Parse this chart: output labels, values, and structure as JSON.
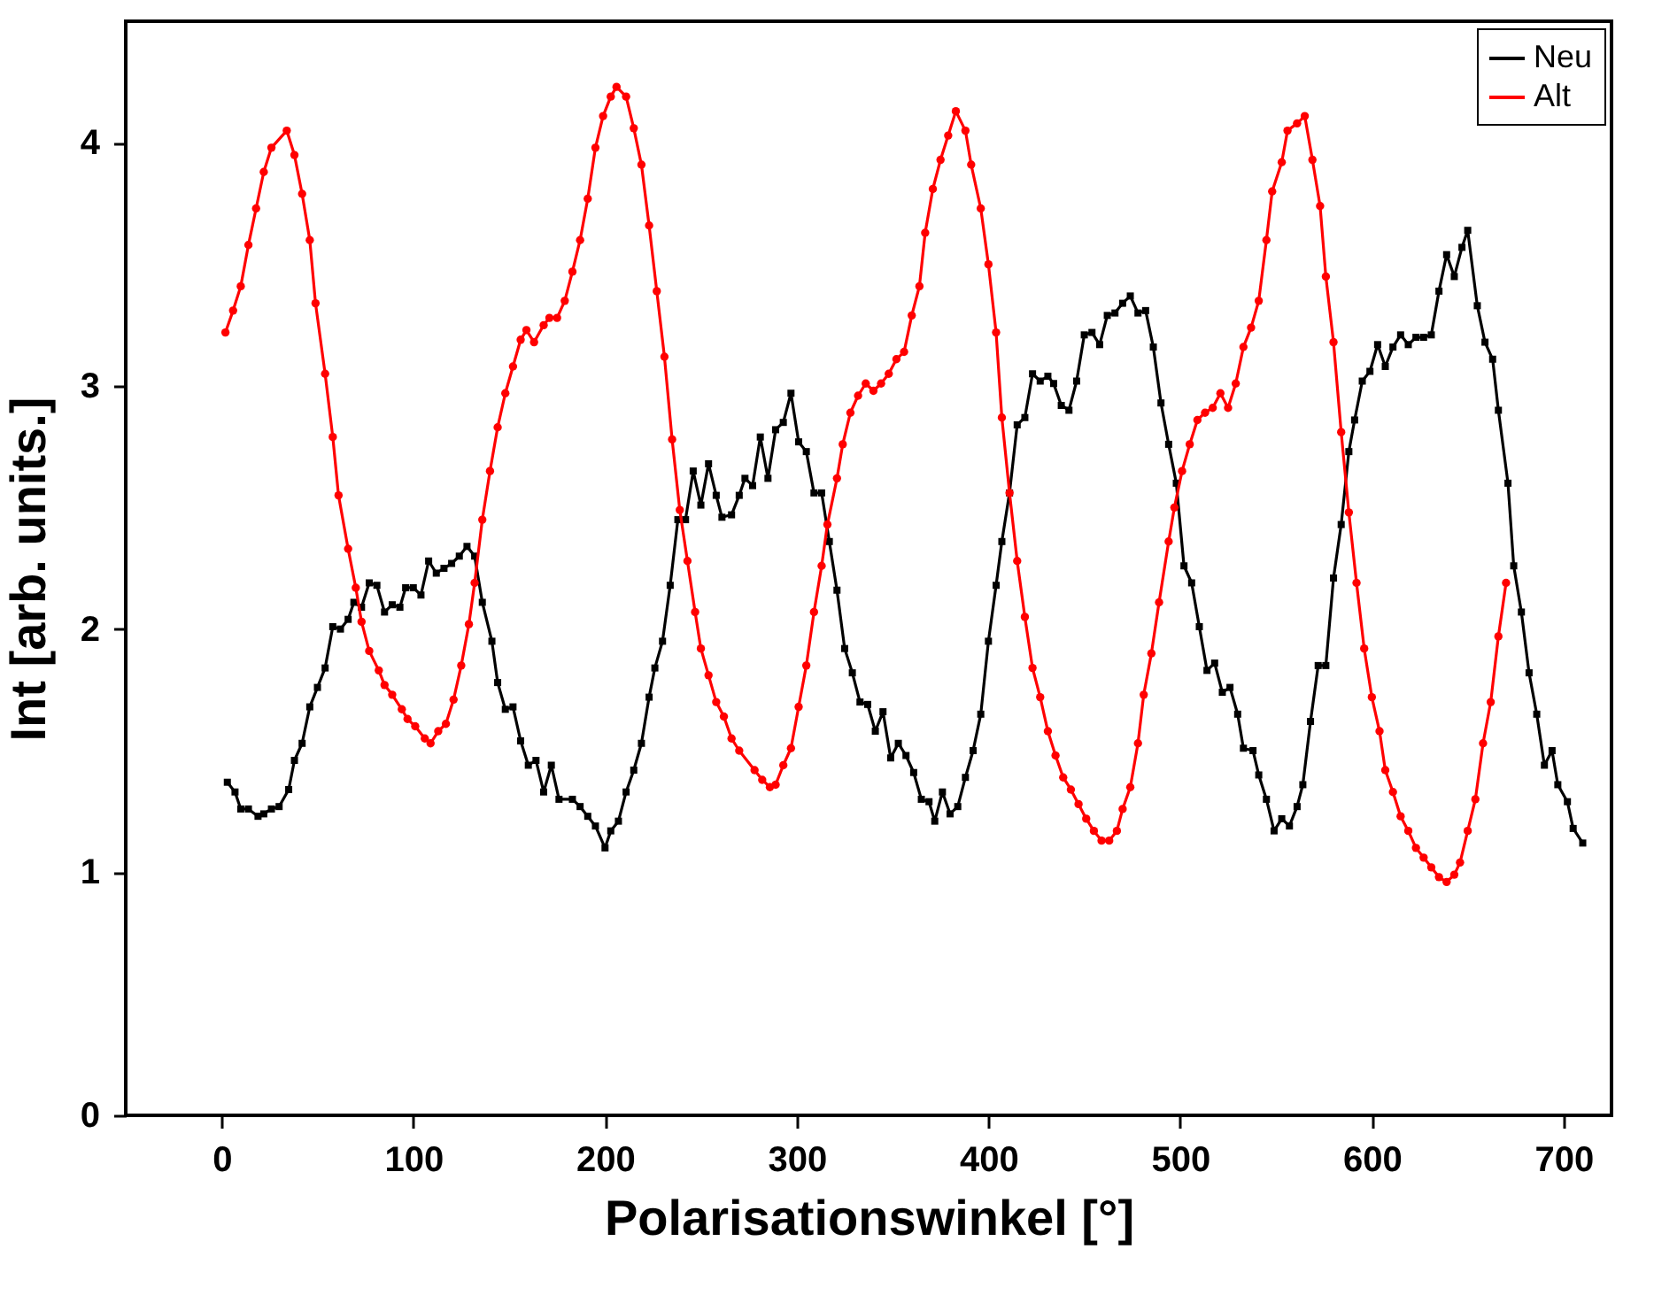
{
  "chart_data": {
    "type": "line",
    "xlabel": "Polarisationswinkel [°]",
    "ylabel": "Int [arb. units.]",
    "xlim": [
      -50,
      725
    ],
    "xticks": [
      0,
      100,
      200,
      300,
      400,
      500,
      600,
      700
    ],
    "ylim": [
      0,
      4.5
    ],
    "yticks": [
      0,
      1,
      2,
      3,
      4
    ],
    "grid": false,
    "legend": "top right",
    "line_style": "solid",
    "series": [
      {
        "name": "Neu",
        "color": "#000000",
        "marker": "square",
        "x": [
          3,
          7,
          10,
          14,
          19,
          22,
          26,
          30,
          35,
          38,
          42,
          46,
          50,
          54,
          58,
          62,
          66,
          69,
          73,
          77,
          81,
          85,
          89,
          93,
          96,
          100,
          104,
          108,
          112,
          116,
          120,
          124,
          128,
          132,
          136,
          141,
          144,
          148,
          152,
          156,
          160,
          164,
          168,
          172,
          176,
          183,
          187,
          191,
          195,
          200,
          203,
          207,
          211,
          215,
          219,
          223,
          226,
          230,
          234,
          238,
          242,
          246,
          250,
          254,
          258,
          261,
          266,
          270,
          273,
          277,
          281,
          285,
          289,
          293,
          297,
          301,
          305,
          309,
          313,
          317,
          321,
          325,
          329,
          333,
          337,
          341,
          345,
          349,
          353,
          357,
          361,
          365,
          369,
          372,
          376,
          380,
          384,
          388,
          392,
          396,
          400,
          404,
          407,
          411,
          415,
          419,
          423,
          427,
          431,
          434,
          438,
          442,
          446,
          450,
          454,
          458,
          462,
          466,
          470,
          474,
          478,
          482,
          486,
          490,
          494,
          498,
          502,
          506,
          510,
          514,
          518,
          522,
          526,
          530,
          533,
          538,
          541,
          545,
          549,
          553,
          557,
          561,
          564,
          568,
          572,
          576,
          580,
          584,
          588,
          591,
          595,
          599,
          603,
          607,
          611,
          615,
          619,
          623,
          627,
          631,
          635,
          639,
          643,
          647,
          650,
          655,
          659,
          663,
          666,
          671,
          674,
          678,
          682,
          686,
          690,
          694,
          697,
          702,
          705,
          710
        ],
        "values": [
          1.37,
          1.33,
          1.26,
          1.26,
          1.23,
          1.24,
          1.26,
          1.27,
          1.34,
          1.46,
          1.53,
          1.68,
          1.76,
          1.84,
          2.01,
          2.0,
          2.04,
          2.11,
          2.09,
          2.19,
          2.18,
          2.07,
          2.1,
          2.09,
          2.17,
          2.17,
          2.14,
          2.28,
          2.23,
          2.25,
          2.27,
          2.3,
          2.34,
          2.3,
          2.11,
          1.95,
          1.78,
          1.67,
          1.68,
          1.54,
          1.44,
          1.46,
          1.33,
          1.44,
          1.3,
          1.3,
          1.27,
          1.23,
          1.19,
          1.1,
          1.17,
          1.21,
          1.33,
          1.42,
          1.53,
          1.72,
          1.84,
          1.95,
          2.18,
          2.45,
          2.45,
          2.65,
          2.51,
          2.68,
          2.55,
          2.46,
          2.47,
          2.55,
          2.62,
          2.59,
          2.79,
          2.62,
          2.82,
          2.85,
          2.97,
          2.77,
          2.73,
          2.56,
          2.56,
          2.36,
          2.16,
          1.92,
          1.82,
          1.7,
          1.69,
          1.58,
          1.66,
          1.47,
          1.53,
          1.48,
          1.41,
          1.3,
          1.29,
          1.21,
          1.33,
          1.24,
          1.27,
          1.39,
          1.5,
          1.65,
          1.95,
          2.18,
          2.36,
          2.56,
          2.84,
          2.87,
          3.05,
          3.02,
          3.04,
          3.01,
          2.92,
          2.9,
          3.02,
          3.21,
          3.22,
          3.17,
          3.29,
          3.3,
          3.34,
          3.37,
          3.3,
          3.31,
          3.16,
          2.93,
          2.76,
          2.6,
          2.26,
          2.19,
          2.01,
          1.83,
          1.86,
          1.74,
          1.76,
          1.65,
          1.51,
          1.5,
          1.4,
          1.3,
          1.17,
          1.22,
          1.19,
          1.27,
          1.36,
          1.62,
          1.85,
          1.85,
          2.21,
          2.43,
          2.73,
          2.86,
          3.02,
          3.06,
          3.17,
          3.08,
          3.16,
          3.21,
          3.17,
          3.2,
          3.2,
          3.21,
          3.39,
          3.54,
          3.45,
          3.57,
          3.64,
          3.33,
          3.18,
          3.11,
          2.9,
          2.6,
          2.26,
          2.07,
          1.82,
          1.65,
          1.44,
          1.5,
          1.36,
          1.29,
          1.18,
          1.12
        ]
      },
      {
        "name": "Alt",
        "color": "#ff0000",
        "marker": "circle",
        "x": [
          2,
          6,
          10,
          14,
          18,
          22,
          26,
          34,
          38,
          42,
          46,
          49,
          54,
          58,
          61,
          66,
          70,
          73,
          77,
          82,
          85,
          89,
          94,
          97,
          101,
          106,
          109,
          113,
          117,
          121,
          125,
          129,
          132,
          136,
          140,
          144,
          148,
          152,
          156,
          159,
          163,
          168,
          171,
          175,
          179,
          183,
          187,
          191,
          195,
          199,
          203,
          206,
          211,
          215,
          219,
          223,
          227,
          231,
          235,
          239,
          243,
          247,
          250,
          254,
          258,
          262,
          266,
          270,
          278,
          282,
          286,
          289,
          293,
          297,
          301,
          305,
          309,
          313,
          316,
          321,
          324,
          328,
          332,
          336,
          340,
          344,
          348,
          352,
          356,
          360,
          364,
          367,
          371,
          375,
          379,
          383,
          388,
          391,
          396,
          400,
          404,
          407,
          411,
          415,
          419,
          423,
          427,
          431,
          435,
          439,
          443,
          447,
          451,
          455,
          459,
          463,
          467,
          470,
          474,
          478,
          481,
          485,
          489,
          494,
          497,
          501,
          505,
          509,
          513,
          517,
          521,
          525,
          529,
          533,
          537,
          541,
          545,
          548,
          553,
          556,
          561,
          565,
          569,
          573,
          576,
          580,
          584,
          588,
          592,
          596,
          600,
          604,
          607,
          611,
          615,
          619,
          623,
          627,
          631,
          635,
          639,
          643,
          646,
          650,
          654,
          658,
          662,
          666,
          670
        ],
        "values": [
          3.22,
          3.31,
          3.41,
          3.58,
          3.73,
          3.88,
          3.98,
          4.05,
          3.95,
          3.79,
          3.6,
          3.34,
          3.05,
          2.79,
          2.55,
          2.33,
          2.17,
          2.03,
          1.91,
          1.83,
          1.77,
          1.73,
          1.67,
          1.63,
          1.6,
          1.55,
          1.53,
          1.58,
          1.61,
          1.71,
          1.85,
          2.02,
          2.19,
          2.45,
          2.65,
          2.83,
          2.97,
          3.08,
          3.19,
          3.23,
          3.18,
          3.25,
          3.28,
          3.28,
          3.35,
          3.47,
          3.6,
          3.77,
          3.98,
          4.11,
          4.19,
          4.23,
          4.19,
          4.06,
          3.91,
          3.66,
          3.39,
          3.12,
          2.78,
          2.49,
          2.28,
          2.07,
          1.92,
          1.81,
          1.7,
          1.64,
          1.55,
          1.5,
          1.42,
          1.38,
          1.35,
          1.36,
          1.44,
          1.51,
          1.68,
          1.85,
          2.07,
          2.26,
          2.43,
          2.62,
          2.76,
          2.89,
          2.96,
          3.01,
          2.98,
          3.01,
          3.05,
          3.11,
          3.14,
          3.29,
          3.41,
          3.63,
          3.81,
          3.93,
          4.03,
          4.13,
          4.05,
          3.91,
          3.73,
          3.5,
          3.22,
          2.87,
          2.56,
          2.28,
          2.05,
          1.84,
          1.72,
          1.58,
          1.48,
          1.39,
          1.34,
          1.28,
          1.22,
          1.17,
          1.13,
          1.13,
          1.17,
          1.26,
          1.35,
          1.53,
          1.73,
          1.9,
          2.11,
          2.36,
          2.5,
          2.65,
          2.76,
          2.86,
          2.89,
          2.91,
          2.97,
          2.91,
          3.01,
          3.16,
          3.24,
          3.35,
          3.6,
          3.8,
          3.92,
          4.05,
          4.08,
          4.11,
          3.93,
          3.74,
          3.45,
          3.18,
          2.81,
          2.48,
          2.19,
          1.92,
          1.72,
          1.58,
          1.42,
          1.33,
          1.23,
          1.17,
          1.1,
          1.06,
          1.02,
          0.98,
          0.96,
          0.99,
          1.04,
          1.17,
          1.3,
          1.53,
          1.7,
          1.97,
          2.19
        ]
      }
    ]
  }
}
